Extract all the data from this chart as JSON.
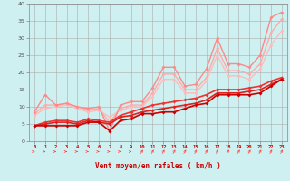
{
  "title": "",
  "xlabel": "Vent moyen/en rafales ( km/h )",
  "xlim": [
    -0.5,
    23.5
  ],
  "ylim": [
    0,
    40
  ],
  "yticks": [
    0,
    5,
    10,
    15,
    20,
    25,
    30,
    35,
    40
  ],
  "xticks": [
    0,
    1,
    2,
    3,
    4,
    5,
    6,
    7,
    8,
    9,
    10,
    11,
    12,
    13,
    14,
    15,
    16,
    17,
    18,
    19,
    20,
    21,
    22,
    23
  ],
  "bg_color": "#cff0f0",
  "grid_color": "#aaaaaa",
  "series": [
    {
      "x": [
        0,
        1,
        2,
        3,
        4,
        5,
        6,
        7,
        8,
        9,
        10,
        11,
        12,
        13,
        14,
        15,
        16,
        17,
        18,
        19,
        20,
        21,
        22,
        23
      ],
      "y": [
        4.5,
        4.5,
        4.5,
        4.5,
        4.5,
        5.5,
        5.5,
        3.0,
        6.0,
        6.5,
        8.0,
        8.0,
        8.5,
        8.5,
        9.5,
        10.5,
        11.0,
        13.5,
        13.5,
        13.5,
        13.5,
        14.0,
        16.0,
        18.0
      ],
      "color": "#cc0000",
      "linewidth": 1.2,
      "marker": "D",
      "markersize": 2.0,
      "alpha": 1.0,
      "zorder": 5
    },
    {
      "x": [
        0,
        1,
        2,
        3,
        4,
        5,
        6,
        7,
        8,
        9,
        10,
        11,
        12,
        13,
        14,
        15,
        16,
        17,
        18,
        19,
        20,
        21,
        22,
        23
      ],
      "y": [
        4.5,
        5.0,
        5.5,
        5.5,
        5.0,
        6.0,
        5.5,
        5.0,
        7.0,
        7.5,
        8.5,
        9.0,
        9.5,
        10.0,
        10.5,
        11.0,
        12.0,
        14.0,
        14.0,
        14.0,
        14.5,
        15.0,
        16.5,
        18.0
      ],
      "color": "#dd2222",
      "linewidth": 1.2,
      "marker": "D",
      "markersize": 2.0,
      "alpha": 1.0,
      "zorder": 4
    },
    {
      "x": [
        0,
        1,
        2,
        3,
        4,
        5,
        6,
        7,
        8,
        9,
        10,
        11,
        12,
        13,
        14,
        15,
        16,
        17,
        18,
        19,
        20,
        21,
        22,
        23
      ],
      "y": [
        4.5,
        5.5,
        6.0,
        6.0,
        5.5,
        6.5,
        6.0,
        5.5,
        7.5,
        8.5,
        9.5,
        10.5,
        11.0,
        11.5,
        12.0,
        12.5,
        13.5,
        15.0,
        15.0,
        15.0,
        15.5,
        16.0,
        17.5,
        18.5
      ],
      "color": "#ee3333",
      "linewidth": 1.2,
      "marker": "D",
      "markersize": 2.0,
      "alpha": 1.0,
      "zorder": 3
    },
    {
      "x": [
        0,
        1,
        2,
        3,
        4,
        5,
        6,
        7,
        8,
        9,
        10,
        11,
        12,
        13,
        14,
        15,
        16,
        17,
        18,
        19,
        20,
        21,
        22,
        23
      ],
      "y": [
        8.5,
        13.5,
        10.5,
        11.0,
        10.0,
        9.5,
        10.0,
        3.0,
        10.5,
        11.5,
        11.5,
        15.5,
        21.5,
        21.5,
        16.0,
        16.5,
        21.0,
        30.0,
        22.5,
        22.5,
        21.5,
        25.0,
        36.0,
        37.5
      ],
      "color": "#ff8888",
      "linewidth": 1.0,
      "marker": "D",
      "markersize": 2.0,
      "alpha": 1.0,
      "zorder": 2
    },
    {
      "x": [
        0,
        1,
        2,
        3,
        4,
        5,
        6,
        7,
        8,
        9,
        10,
        11,
        12,
        13,
        14,
        15,
        16,
        17,
        18,
        19,
        20,
        21,
        22,
        23
      ],
      "y": [
        8.0,
        10.5,
        10.5,
        11.0,
        10.0,
        9.0,
        9.5,
        5.5,
        9.5,
        10.5,
        10.5,
        14.0,
        19.5,
        19.5,
        15.0,
        15.0,
        18.5,
        27.0,
        20.5,
        20.5,
        19.5,
        22.5,
        31.5,
        35.5
      ],
      "color": "#ffaaaa",
      "linewidth": 1.0,
      "marker": "D",
      "markersize": 2.0,
      "alpha": 1.0,
      "zorder": 1
    },
    {
      "x": [
        0,
        1,
        2,
        3,
        4,
        5,
        6,
        7,
        8,
        9,
        10,
        11,
        12,
        13,
        14,
        15,
        16,
        17,
        18,
        19,
        20,
        21,
        22,
        23
      ],
      "y": [
        7.5,
        9.5,
        10.0,
        10.5,
        9.5,
        8.5,
        9.0,
        7.0,
        9.0,
        10.0,
        10.0,
        13.0,
        18.0,
        18.0,
        14.0,
        14.0,
        17.5,
        25.0,
        19.0,
        19.0,
        18.0,
        21.0,
        28.0,
        32.0
      ],
      "color": "#ffbbbb",
      "linewidth": 1.0,
      "marker": "D",
      "markersize": 2.0,
      "alpha": 1.0,
      "zorder": 1
    }
  ],
  "arrow_color": "#ff4444",
  "arrow_threshold": 9
}
